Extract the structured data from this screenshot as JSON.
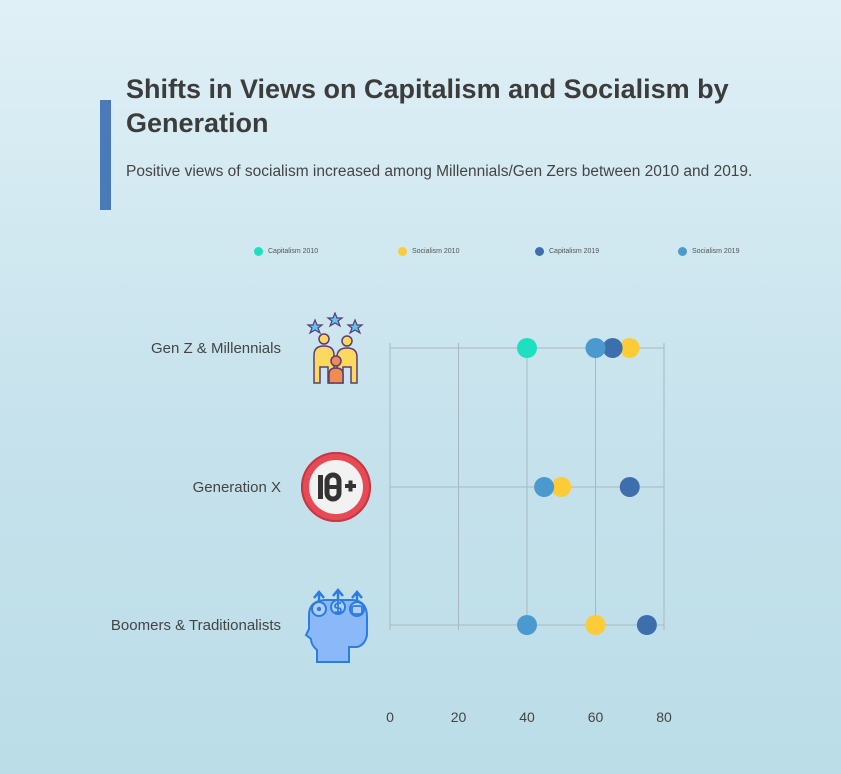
{
  "header": {
    "title": "Shifts in Views on Capitalism and Socialism by Generation",
    "subtitle": "Positive views of socialism increased among Millennials/Gen Zers between 2010 and 2019."
  },
  "icons": [
    "family-stars-icon",
    "age-18-plus-icon",
    "head-money-growth-icon"
  ],
  "chart_data": {
    "type": "scatter",
    "title": "Shifts in Views on Capitalism and Socialism by Generation",
    "subtitle": "Positive views of socialism increased among Millennials/Gen Zers between 2010 and 2019.",
    "categories": [
      "Gen Z & Millennials",
      "Generation X",
      "Boomers & Traditionalists"
    ],
    "series": [
      {
        "name": "Capitalism 2010",
        "color": "#1de0c0",
        "values": [
          40,
          null,
          null
        ]
      },
      {
        "name": "Socialism 2010",
        "color": "#fccc38",
        "values": [
          70,
          50,
          60
        ]
      },
      {
        "name": "Capitalism 2019",
        "color": "#3d6fac",
        "values": [
          65,
          70,
          75
        ]
      },
      {
        "name": "Socialism 2019",
        "color": "#4a9ad0",
        "values": [
          60,
          45,
          40
        ]
      }
    ],
    "xticks": [
      0,
      20,
      40,
      60,
      80
    ],
    "xlim": [
      0,
      80
    ],
    "xlabel": "",
    "ylabel": "",
    "grid": true,
    "legend": "top"
  }
}
